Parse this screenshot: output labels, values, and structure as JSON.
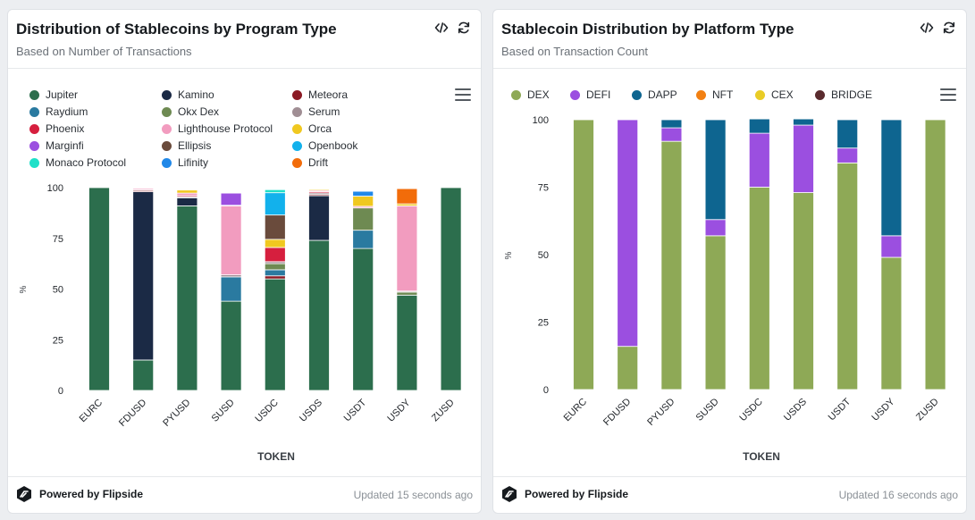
{
  "cards": [
    {
      "title": "Distribution of Stablecoins by Program Type",
      "subtitle": "Based on Number of Transactions",
      "footer_brand": "Powered by Flipside",
      "updated": "Updated 15 seconds ago"
    },
    {
      "title": "Stablecoin Distribution by Platform Type",
      "subtitle": "Based on Transaction Count",
      "footer_brand": "Powered by Flipside",
      "updated": "Updated 16 seconds ago"
    }
  ],
  "icons": {
    "code": "code-icon",
    "refresh": "refresh-icon",
    "menu": "hamburger-menu-icon",
    "brand": "flipside-logo-icon"
  },
  "chart_data": [
    {
      "type": "bar",
      "stacked": true,
      "title": "Distribution of Stablecoins by Program Type",
      "subtitle": "Based on Number of Transactions",
      "xlabel": "TOKEN",
      "ylabel": "%",
      "ylim": [
        0,
        100
      ],
      "yticks": [
        0,
        25,
        50,
        75,
        100
      ],
      "grid": false,
      "legend_position": "top-left",
      "categories": [
        "EURC",
        "FDUSD",
        "PYUSD",
        "SUSD",
        "USDC",
        "USDS",
        "USDT",
        "USDY",
        "ZUSD"
      ],
      "series": [
        {
          "name": "Jupiter",
          "color": "#2c6e4d",
          "values": [
            100,
            15,
            91,
            44,
            55,
            74,
            70,
            47,
            100
          ]
        },
        {
          "name": "Kamino",
          "color": "#1b2a45",
          "values": [
            0,
            83,
            4,
            0,
            0,
            22,
            0,
            0,
            0
          ]
        },
        {
          "name": "Meteora",
          "color": "#8b1a24",
          "values": [
            0,
            0.6,
            0,
            0,
            1.5,
            0.6,
            0,
            0,
            0
          ]
        },
        {
          "name": "Raydium",
          "color": "#2a7aa0",
          "values": [
            0,
            0,
            0,
            12,
            3,
            0,
            9,
            0,
            0
          ]
        },
        {
          "name": "Okx Dex",
          "color": "#6e8a52",
          "values": [
            0,
            0,
            0,
            0,
            3,
            0,
            11,
            1.5,
            0
          ]
        },
        {
          "name": "Serum",
          "color": "#a08e94",
          "values": [
            0,
            0.4,
            0.5,
            1,
            1,
            0.8,
            0,
            0.5,
            0
          ]
        },
        {
          "name": "Phoenix",
          "color": "#d61f3e",
          "values": [
            0,
            0,
            0.6,
            0,
            7,
            0.6,
            0,
            0,
            0
          ]
        },
        {
          "name": "Lighthouse Protocol",
          "color": "#f29cbf",
          "values": [
            0,
            0.6,
            1.2,
            34,
            0,
            0.6,
            0.8,
            42,
            0
          ]
        },
        {
          "name": "Orca",
          "color": "#f0c820",
          "values": [
            0,
            0,
            1.5,
            0.3,
            4,
            0.5,
            5,
            1,
            0
          ]
        },
        {
          "name": "Marginfi",
          "color": "#9b4fe0",
          "values": [
            0,
            0,
            0,
            6,
            0,
            0,
            0,
            0,
            0
          ]
        },
        {
          "name": "Ellipsis",
          "color": "#6a4b3c",
          "values": [
            0,
            0,
            0,
            0,
            12,
            0,
            0,
            0,
            0
          ]
        },
        {
          "name": "Openbook",
          "color": "#12b1ec",
          "values": [
            0,
            0,
            0,
            0,
            11,
            0,
            0,
            0,
            0
          ]
        },
        {
          "name": "Monaco Protocol",
          "color": "#1fe0c8",
          "values": [
            0,
            0,
            0,
            0,
            1.5,
            0,
            0,
            0,
            0
          ]
        },
        {
          "name": "Lifinity",
          "color": "#2188e8",
          "values": [
            0,
            0,
            0,
            0,
            0,
            0,
            2.4,
            0,
            0
          ]
        },
        {
          "name": "Drift",
          "color": "#f26c0a",
          "values": [
            0,
            0,
            0,
            0,
            0,
            0,
            0,
            7.5,
            0
          ]
        }
      ]
    },
    {
      "type": "bar",
      "stacked": true,
      "title": "Stablecoin Distribution by Platform Type",
      "subtitle": "Based on Transaction Count",
      "xlabel": "TOKEN",
      "ylabel": "%",
      "ylim": [
        0,
        100
      ],
      "yticks": [
        0,
        25,
        50,
        75,
        100
      ],
      "grid": false,
      "legend_position": "top-left",
      "categories": [
        "EURC",
        "FDUSD",
        "PYUSD",
        "SUSD",
        "USDC",
        "USDS",
        "USDT",
        "USDY",
        "ZUSD"
      ],
      "series": [
        {
          "name": "DEX",
          "color": "#8ea956",
          "values": [
            100,
            16,
            92,
            57,
            75,
            73,
            84,
            49,
            100
          ]
        },
        {
          "name": "DEFI",
          "color": "#9b4fe0",
          "values": [
            0,
            84,
            5,
            6,
            20,
            25,
            5.5,
            8,
            0
          ]
        },
        {
          "name": "DAPP",
          "color": "#0e6590",
          "values": [
            0,
            0,
            3,
            37,
            5.3,
            2.3,
            10.5,
            43,
            0
          ]
        },
        {
          "name": "NFT",
          "color": "#f28012",
          "values": [
            0,
            0,
            0,
            0,
            0,
            0,
            0,
            0,
            0
          ]
        },
        {
          "name": "CEX",
          "color": "#e9cc26",
          "values": [
            0,
            0,
            0,
            0,
            0,
            0,
            0,
            0,
            0
          ]
        },
        {
          "name": "BRIDGE",
          "color": "#5a2b2e",
          "values": [
            0,
            0,
            0,
            0,
            0,
            0,
            0,
            0,
            0
          ]
        }
      ]
    }
  ]
}
